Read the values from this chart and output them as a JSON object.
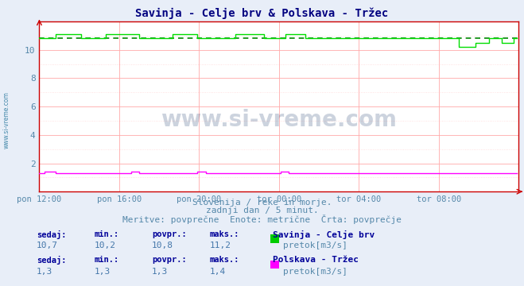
{
  "title": "Savinja - Celje brv & Polskava - Tržec",
  "title_color": "#000080",
  "title_fontsize": 10,
  "bg_color": "#e8eef8",
  "plot_bg_color": "#ffffff",
  "xlim": [
    0,
    288
  ],
  "ylim": [
    0,
    12
  ],
  "xtick_labels": [
    "pon 12:00",
    "pon 16:00",
    "pon 20:00",
    "tor 00:00",
    "tor 04:00",
    "tor 08:00"
  ],
  "xtick_positions": [
    0,
    48,
    96,
    144,
    192,
    240
  ],
  "grid_color": "#ffaaaa",
  "line1_color": "#00dd00",
  "line2_color": "#ff00ff",
  "avg_line_color": "#008800",
  "avg_line_value": 10.8,
  "subtitle1": "Slovenija / reke in morje.",
  "subtitle2": "zadnji dan / 5 minut.",
  "subtitle3": "Meritve: povprečne  Enote: metrične  Črta: povprečje",
  "subtitle_color": "#5588aa",
  "subtitle_fontsize": 8,
  "stats1_label": "Savinja - Celje brv",
  "stats1_sedaj": "10,7",
  "stats1_min": "10,2",
  "stats1_povpr": "10,8",
  "stats1_maks": "11,2",
  "stats1_unit": "pretok[m3/s]",
  "stats1_color": "#00cc00",
  "stats2_label": "Polskava - Tržec",
  "stats2_sedaj": "1,3",
  "stats2_min": "1,3",
  "stats2_povpr": "1,3",
  "stats2_maks": "1,4",
  "stats2_unit": "pretok[m3/s]",
  "stats2_color": "#ff00ff",
  "watermark": "www.si-vreme.com",
  "watermark_color": "#1a3a6a",
  "sidebar_text": "www.si-vreme.com",
  "sidebar_color": "#4488aa",
  "header_color": "#000099",
  "value_color": "#4477aa",
  "spine_color": "#cc0000"
}
